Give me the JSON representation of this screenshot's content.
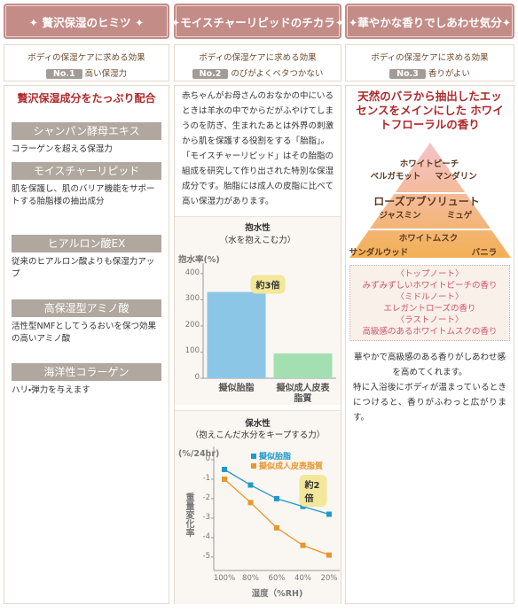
{
  "columns": [
    {
      "header": "✦ 贅沢保湿のヒミツ ✦",
      "subheader": "ボディの保湿ケアに求める効果",
      "badge": "No.1",
      "effect": "高い保湿力",
      "title": "贅沢保湿成分をたっぷり配合",
      "ingredients": [
        {
          "name": "シャンパン酵母エキス",
          "desc": "コラーゲンを超える保湿力"
        },
        {
          "name": "モイスチャーリピッド",
          "desc": "肌を保護し、肌のバリア機能をサポートする胎脂様の抽出成分"
        },
        {
          "name": "ヒアルロン酸EX",
          "desc": "従来のヒアルロン酸よりも保湿力アップ"
        },
        {
          "name": "高保湿型アミノ酸",
          "desc": "活性型NMFとしてうるおいを保つ効果の高いアミノ酸"
        },
        {
          "name": "海洋性コラーゲン",
          "desc": "ハリ・弾力を与えます"
        }
      ]
    },
    {
      "header": "✦モイスチャーリピッドのチカラ✦",
      "subheader": "ボディの保湿ケアに求める効果",
      "badge": "No.2",
      "effect": "のびがよくベタつかない",
      "paragraphs": [
        "赤ちゃんがお母さんのおなかの中にいるときは羊水の中でからだがふやけてしまうのを防ぎ、生まれたあとは外界の刺激から肌を保護する役割をする「胎脂」。",
        "「モイスチャーリピッド」はその胎脂の組成を研究して作り出された特別な保湿成分です。胎脂には成人の皮脂に比べて高い保湿力があります。"
      ]
    },
    {
      "header": "✦華やかな香りでしあわせ気分✦",
      "subheader": "ボディの保湿ケアに求める効果",
      "badge": "No.3",
      "effect": "香りがよい",
      "title": "天然のバラから抽出したエッセンスをメインにした ホワイトフローラルの香り",
      "pyramid": [
        [
          "ホワイトピーチ",
          "ベルガモット",
          "マンダリン"
        ],
        [
          "ローズアブソリュート",
          "ジャスミン",
          "ミュゲ"
        ],
        [
          "ホワイトムスク",
          "サンダルウッド",
          "バニラ"
        ]
      ],
      "notes": [
        "〈トップノート〉",
        "みずみずしいホワイトピーチの香り",
        "〈ミドルノート〉",
        "エレガントローズの香り",
        "〈ラストノート〉",
        "高級感のあるホワイトムスクの香り"
      ],
      "paragraphs": [
        "華やかで高級感のある香りがしあわせ感を高めてくれます。",
        "特に入浴後にボディが温まっているときにつけると、香りがふわっと広がります。"
      ]
    }
  ],
  "chart_data": [
    {
      "type": "bar",
      "title": "抱水性",
      "subtitle": "（水を抱えこむ力）",
      "y_label": "抱水率(%)",
      "categories": [
        "擬似胎脂",
        "擬似成人皮表脂質"
      ],
      "values": [
        330,
        95
      ],
      "colors": [
        "#8cc6e6",
        "#a4dfb2"
      ],
      "ylim": [
        0,
        420
      ],
      "yticks": [
        0,
        100,
        200,
        300,
        400
      ],
      "grid": false,
      "annotation": "約3倍"
    },
    {
      "type": "line",
      "title": "保水性",
      "subtitle": "（抱えこんだ水分をキープする力）",
      "y_unit": "(%/24hr)",
      "y_label": "重量変化率",
      "x_label": "湿度（%RH)",
      "categories": [
        "100%",
        "80%",
        "60%",
        "40%",
        "20%"
      ],
      "series": [
        {
          "name": "擬似胎脂",
          "color": "#1f9ac9",
          "values": [
            -0.5,
            -1.3,
            -2.0,
            -2.4,
            -2.8
          ]
        },
        {
          "name": "擬似成人皮表脂質",
          "color": "#e8962e",
          "values": [
            -1.0,
            -2.2,
            -3.5,
            -4.4,
            -4.9
          ]
        }
      ],
      "ylim": [
        -5.6,
        0.5
      ],
      "yticks": [
        0,
        -1,
        -2,
        -3,
        -4,
        -5
      ],
      "grid": false,
      "legend": "upper-right",
      "annotation": "約2倍"
    }
  ]
}
